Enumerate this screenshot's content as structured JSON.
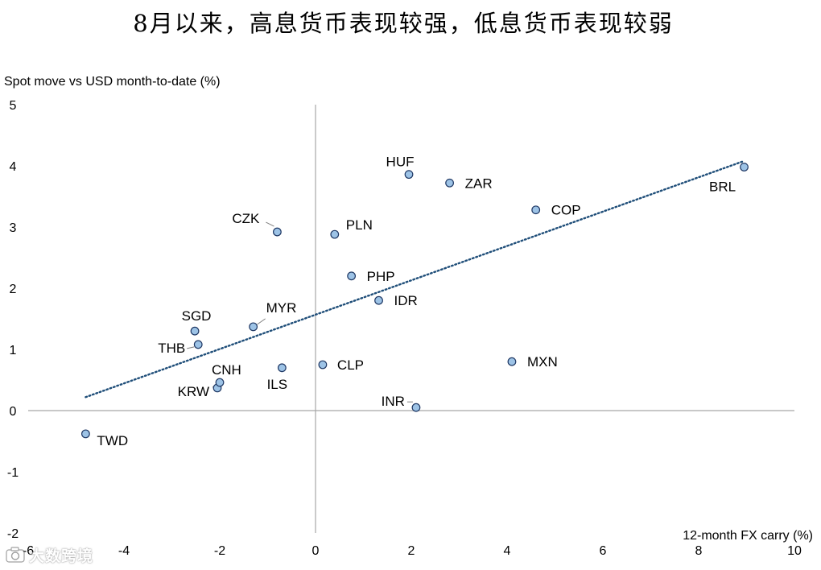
{
  "page": {
    "title": "8月以来，高息货币表现较强，低息货币表现较弱"
  },
  "watermark": {
    "text": "大数跨境",
    "icon": "camera-logo-icon"
  },
  "chart_data": {
    "type": "scatter",
    "title": "8月以来，高息货币表现较强，低息货币表现较弱",
    "xlabel": "12-month FX carry (%)",
    "ylabel": "Spot move vs USD month-to-date (%)",
    "xlim": [
      -6,
      10
    ],
    "ylim": [
      -2,
      5
    ],
    "xticks": [
      -6,
      -4,
      -2,
      0,
      2,
      4,
      6,
      8,
      10
    ],
    "yticks": [
      5,
      4,
      3,
      2,
      1,
      0,
      -1,
      -2
    ],
    "grid": false,
    "points": [
      {
        "label": "TWD",
        "x": -4.8,
        "y": -0.38,
        "label_pos": "below-right",
        "leader": false
      },
      {
        "label": "KRW",
        "x": -2.05,
        "y": 0.37,
        "label_pos": "left",
        "leader": false
      },
      {
        "label": "CNH",
        "x": -2.0,
        "y": 0.46,
        "label_pos": "above-right",
        "leader": true
      },
      {
        "label": "THB",
        "x": -2.45,
        "y": 1.08,
        "label_pos": "left",
        "leader": true
      },
      {
        "label": "SGD",
        "x": -2.52,
        "y": 1.3,
        "label_pos": "above",
        "leader": false
      },
      {
        "label": "MYR",
        "x": -1.3,
        "y": 1.37,
        "label_pos": "above-right",
        "leader": true
      },
      {
        "label": "ILS",
        "x": -0.7,
        "y": 0.7,
        "label_pos": "below",
        "leader": false
      },
      {
        "label": "CZK",
        "x": -0.8,
        "y": 2.92,
        "label_pos": "left",
        "leader": true
      },
      {
        "label": "CLP",
        "x": 0.15,
        "y": 0.75,
        "label_pos": "right",
        "leader": false
      },
      {
        "label": "PLN",
        "x": 0.4,
        "y": 2.88,
        "label_pos": "above-right",
        "leader": false
      },
      {
        "label": "PHP",
        "x": 0.75,
        "y": 2.2,
        "label_pos": "right",
        "leader": false
      },
      {
        "label": "IDR",
        "x": 1.32,
        "y": 1.8,
        "label_pos": "right",
        "leader": false
      },
      {
        "label": "INR",
        "x": 2.1,
        "y": 0.05,
        "label_pos": "left",
        "leader": true
      },
      {
        "label": "HUF",
        "x": 1.95,
        "y": 3.86,
        "label_pos": "above",
        "leader": false
      },
      {
        "label": "ZAR",
        "x": 2.8,
        "y": 3.72,
        "label_pos": "right",
        "leader": false
      },
      {
        "label": "MXN",
        "x": 4.1,
        "y": 0.8,
        "label_pos": "right",
        "leader": false
      },
      {
        "label": "COP",
        "x": 4.6,
        "y": 3.28,
        "label_pos": "right",
        "leader": false
      },
      {
        "label": "BRL",
        "x": 8.95,
        "y": 3.98,
        "label_pos": "below-left",
        "leader": false
      }
    ],
    "trendline": {
      "style": "dotted",
      "x_start": -4.8,
      "y_start": 0.22,
      "x_end": 8.95,
      "y_end": 4.08
    },
    "colors": {
      "marker_fill": "#9dc3e6",
      "marker_stroke": "#1f3864",
      "trendline": "#1f4e79",
      "axis": "#a6a6a6",
      "text": "#000000"
    }
  }
}
